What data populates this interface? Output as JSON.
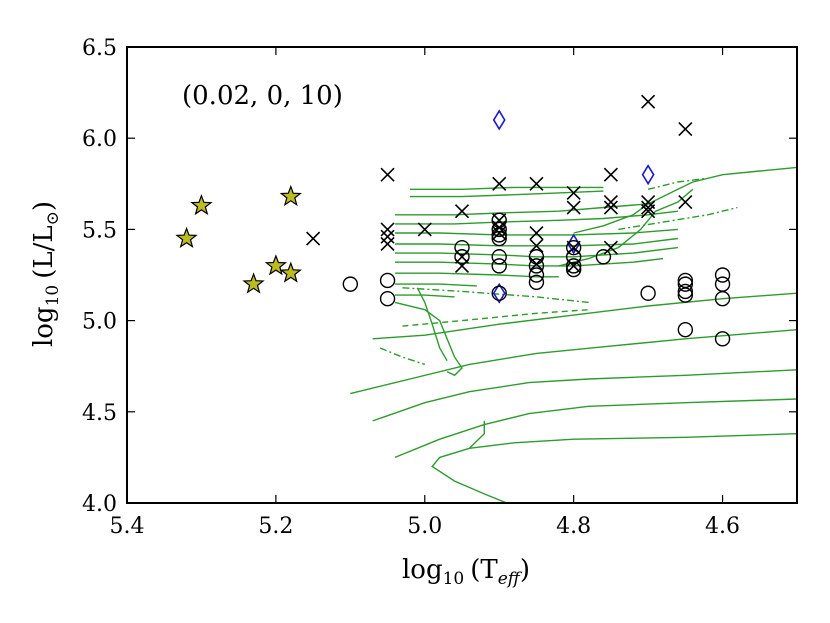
{
  "chart_data": {
    "type": "scatter",
    "title": "",
    "annotation": "(0.02, 0, 10)",
    "xlabel": {
      "prefix": "log",
      "sub": "10",
      "arg": "(T",
      "argsub": "eff",
      "close": ")"
    },
    "ylabel": {
      "prefix": "log",
      "sub": "10",
      "arg": "(L/L",
      "argsub": "⊙",
      "close": ")"
    },
    "xlim": [
      5.4,
      4.5
    ],
    "ylim": [
      4.0,
      6.5
    ],
    "xticks": [
      {
        "value": 5.4,
        "label": "5.4"
      },
      {
        "value": 5.2,
        "label": "5.2"
      },
      {
        "value": 5.0,
        "label": "5.0"
      },
      {
        "value": 4.8,
        "label": "4.8"
      },
      {
        "value": 4.6,
        "label": "4.6"
      }
    ],
    "yticks": [
      {
        "value": 4.0,
        "label": "4.0"
      },
      {
        "value": 4.5,
        "label": "4.5"
      },
      {
        "value": 5.0,
        "label": "5.0"
      },
      {
        "value": 5.5,
        "label": "5.5"
      },
      {
        "value": 6.0,
        "label": "6.0"
      },
      {
        "value": 6.5,
        "label": "6.5"
      }
    ],
    "grid": false,
    "colors": {
      "track": "#2e9b2e",
      "star": "#bcbc1e",
      "diamond": "#1a1acc",
      "marker": "#000000"
    },
    "series": [
      {
        "name": "stars",
        "marker": "star",
        "points": [
          [
            5.32,
            5.45
          ],
          [
            5.3,
            5.63
          ],
          [
            5.23,
            5.2
          ],
          [
            5.2,
            5.3
          ],
          [
            5.18,
            5.26
          ],
          [
            5.18,
            5.68
          ]
        ]
      },
      {
        "name": "diamonds",
        "marker": "diamond",
        "points": [
          [
            4.9,
            6.1
          ],
          [
            4.7,
            5.8
          ],
          [
            4.8,
            5.42
          ],
          [
            4.9,
            5.15
          ]
        ]
      },
      {
        "name": "crosses",
        "marker": "x",
        "points": [
          [
            5.15,
            5.45
          ],
          [
            5.05,
            5.8
          ],
          [
            5.05,
            5.5
          ],
          [
            5.05,
            5.46
          ],
          [
            5.05,
            5.42
          ],
          [
            5.0,
            5.5
          ],
          [
            4.95,
            5.6
          ],
          [
            4.95,
            5.35
          ],
          [
            4.95,
            5.3
          ],
          [
            4.9,
            5.75
          ],
          [
            4.9,
            5.55
          ],
          [
            4.9,
            5.51
          ],
          [
            4.9,
            5.48
          ],
          [
            4.85,
            5.75
          ],
          [
            4.85,
            5.48
          ],
          [
            4.85,
            5.41
          ],
          [
            4.85,
            5.31
          ],
          [
            4.8,
            5.7
          ],
          [
            4.8,
            5.62
          ],
          [
            4.8,
            5.4
          ],
          [
            4.8,
            5.3
          ],
          [
            4.75,
            5.8
          ],
          [
            4.75,
            5.65
          ],
          [
            4.75,
            5.62
          ],
          [
            4.75,
            5.4
          ],
          [
            4.7,
            6.2
          ],
          [
            4.7,
            5.65
          ],
          [
            4.7,
            5.62
          ],
          [
            4.7,
            5.6
          ],
          [
            4.65,
            6.05
          ],
          [
            4.65,
            5.65
          ]
        ]
      },
      {
        "name": "circles",
        "marker": "circle",
        "points": [
          [
            5.1,
            5.2
          ],
          [
            5.05,
            5.22
          ],
          [
            5.05,
            5.12
          ],
          [
            4.95,
            5.4
          ],
          [
            4.95,
            5.35
          ],
          [
            4.9,
            5.55
          ],
          [
            4.9,
            5.5
          ],
          [
            4.9,
            5.47
          ],
          [
            4.9,
            5.45
          ],
          [
            4.9,
            5.35
          ],
          [
            4.9,
            5.3
          ],
          [
            4.9,
            5.15
          ],
          [
            4.85,
            5.35
          ],
          [
            4.85,
            5.3
          ],
          [
            4.85,
            5.25
          ],
          [
            4.85,
            5.21
          ],
          [
            4.8,
            5.4
          ],
          [
            4.8,
            5.35
          ],
          [
            4.8,
            5.3
          ],
          [
            4.8,
            5.28
          ],
          [
            4.76,
            5.35
          ],
          [
            4.7,
            5.15
          ],
          [
            4.65,
            5.22
          ],
          [
            4.65,
            5.2
          ],
          [
            4.65,
            5.16
          ],
          [
            4.65,
            5.14
          ],
          [
            4.65,
            4.95
          ],
          [
            4.6,
            5.25
          ],
          [
            4.6,
            5.2
          ],
          [
            4.6,
            5.12
          ],
          [
            4.6,
            4.9
          ]
        ]
      }
    ],
    "tracks": [
      {
        "style": "solid",
        "points": [
          [
            5.04,
            5.48
          ],
          [
            4.98,
            5.48
          ],
          [
            4.9,
            5.47
          ],
          [
            4.85,
            5.47
          ],
          [
            4.8,
            5.47
          ],
          [
            4.72,
            5.48
          ],
          [
            4.66,
            5.5
          ]
        ]
      },
      {
        "style": "solid",
        "points": [
          [
            5.04,
            5.42
          ],
          [
            4.98,
            5.42
          ],
          [
            4.9,
            5.41
          ],
          [
            4.85,
            5.41
          ],
          [
            4.8,
            5.41
          ],
          [
            4.72,
            5.42
          ],
          [
            4.66,
            5.45
          ]
        ]
      },
      {
        "style": "solid",
        "points": [
          [
            5.04,
            5.37
          ],
          [
            4.98,
            5.37
          ],
          [
            4.9,
            5.36
          ],
          [
            4.85,
            5.35
          ],
          [
            4.8,
            5.35
          ],
          [
            4.72,
            5.37
          ],
          [
            4.66,
            5.4
          ]
        ]
      },
      {
        "style": "solid",
        "points": [
          [
            5.04,
            5.32
          ],
          [
            4.98,
            5.32
          ],
          [
            4.9,
            5.31
          ],
          [
            4.85,
            5.3
          ],
          [
            4.8,
            5.3
          ],
          [
            4.72,
            5.32
          ],
          [
            4.68,
            5.34
          ]
        ]
      },
      {
        "style": "solid",
        "points": [
          [
            5.04,
            5.26
          ],
          [
            4.98,
            5.26
          ],
          [
            4.9,
            5.25
          ],
          [
            4.85,
            5.24
          ],
          [
            4.82,
            5.24
          ]
        ]
      },
      {
        "style": "solid",
        "points": [
          [
            5.04,
            5.2
          ],
          [
            4.98,
            5.2
          ],
          [
            4.93,
            5.19
          ]
        ]
      },
      {
        "style": "solid",
        "points": [
          [
            5.04,
            5.14
          ],
          [
            5.0,
            5.14
          ],
          [
            4.96,
            5.13
          ]
        ]
      },
      {
        "style": "solid",
        "points": [
          [
            5.02,
            5.72
          ],
          [
            4.95,
            5.72
          ],
          [
            4.88,
            5.73
          ],
          [
            4.82,
            5.73
          ],
          [
            4.76,
            5.73
          ]
        ]
      },
      {
        "style": "solid",
        "points": [
          [
            5.02,
            5.68
          ],
          [
            4.95,
            5.68
          ],
          [
            4.88,
            5.69
          ],
          [
            4.82,
            5.7
          ],
          [
            4.76,
            5.71
          ]
        ]
      },
      {
        "style": "solid",
        "points": [
          [
            5.04,
            5.58
          ],
          [
            4.96,
            5.58
          ],
          [
            4.9,
            5.59
          ],
          [
            4.82,
            5.6
          ],
          [
            4.76,
            5.62
          ],
          [
            4.7,
            5.64
          ]
        ]
      },
      {
        "style": "solid",
        "points": [
          [
            5.04,
            5.53
          ],
          [
            4.96,
            5.53
          ],
          [
            4.9,
            5.54
          ],
          [
            4.82,
            5.55
          ],
          [
            4.76,
            5.56
          ],
          [
            4.7,
            5.58
          ],
          [
            4.66,
            5.6
          ]
        ]
      },
      {
        "style": "solid",
        "points": [
          [
            4.8,
            5.48
          ],
          [
            4.76,
            5.52
          ],
          [
            4.72,
            5.58
          ],
          [
            4.7,
            5.64
          ],
          [
            4.68,
            5.68
          ],
          [
            4.66,
            5.72
          ],
          [
            4.64,
            5.76
          ],
          [
            4.6,
            5.8
          ],
          [
            4.55,
            5.82
          ],
          [
            4.5,
            5.84
          ]
        ]
      },
      {
        "style": "solid",
        "points": [
          [
            4.82,
            5.3
          ],
          [
            4.78,
            5.34
          ],
          [
            4.74,
            5.4
          ],
          [
            4.71,
            5.5
          ],
          [
            4.69,
            5.6
          ],
          [
            4.66,
            5.65
          ],
          [
            4.64,
            5.72
          ]
        ]
      },
      {
        "style": "solid",
        "points": [
          [
            5.04,
            5.1
          ],
          [
            5.0,
            5.06
          ],
          [
            4.98,
            5.0
          ],
          [
            4.97,
            4.9
          ],
          [
            4.96,
            4.8
          ],
          [
            4.95,
            4.74
          ],
          [
            4.96,
            4.7
          ],
          [
            4.97,
            4.72
          ]
        ]
      },
      {
        "style": "solid",
        "points": [
          [
            5.01,
            5.18
          ],
          [
            5.0,
            5.1
          ],
          [
            4.99,
            4.98
          ],
          [
            4.98,
            4.85
          ],
          [
            4.97,
            4.78
          ]
        ]
      },
      {
        "style": "solid",
        "points": [
          [
            5.07,
            4.9
          ],
          [
            5.0,
            4.92
          ],
          [
            4.9,
            4.98
          ],
          [
            4.8,
            5.03
          ],
          [
            4.7,
            5.08
          ],
          [
            4.6,
            5.12
          ],
          [
            4.5,
            5.15
          ]
        ]
      },
      {
        "style": "solid",
        "points": [
          [
            5.1,
            4.6
          ],
          [
            5.02,
            4.68
          ],
          [
            4.94,
            4.76
          ],
          [
            4.85,
            4.82
          ],
          [
            4.75,
            4.86
          ],
          [
            4.65,
            4.9
          ],
          [
            4.5,
            4.95
          ]
        ]
      },
      {
        "style": "solid",
        "points": [
          [
            5.07,
            4.45
          ],
          [
            5.0,
            4.55
          ],
          [
            4.94,
            4.61
          ],
          [
            4.86,
            4.66
          ],
          [
            4.78,
            4.68
          ],
          [
            4.65,
            4.7
          ],
          [
            4.5,
            4.73
          ]
        ]
      },
      {
        "style": "solid",
        "points": [
          [
            5.04,
            4.25
          ],
          [
            4.98,
            4.35
          ],
          [
            4.92,
            4.43
          ],
          [
            4.86,
            4.49
          ],
          [
            4.78,
            4.53
          ],
          [
            4.65,
            4.55
          ],
          [
            4.5,
            4.57
          ]
        ]
      },
      {
        "style": "solid",
        "points": [
          [
            4.89,
            4.0
          ],
          [
            4.92,
            4.05
          ],
          [
            4.96,
            4.12
          ],
          [
            4.99,
            4.2
          ],
          [
            4.98,
            4.25
          ],
          [
            4.94,
            4.3
          ],
          [
            4.88,
            4.33
          ],
          [
            4.8,
            4.35
          ],
          [
            4.65,
            4.36
          ],
          [
            4.5,
            4.38
          ]
        ]
      },
      {
        "style": "solid",
        "points": [
          [
            4.94,
            4.3
          ],
          [
            4.92,
            4.38
          ],
          [
            4.92,
            4.45
          ]
        ]
      },
      {
        "style": "dashdot",
        "points": [
          [
            5.03,
            5.18
          ],
          [
            4.95,
            5.16
          ],
          [
            4.85,
            5.13
          ],
          [
            4.78,
            5.1
          ]
        ]
      },
      {
        "style": "dashed",
        "points": [
          [
            5.03,
            4.97
          ],
          [
            4.95,
            5.0
          ],
          [
            4.85,
            5.04
          ],
          [
            4.78,
            5.06
          ]
        ]
      },
      {
        "style": "dashdot",
        "points": [
          [
            5.06,
            4.85
          ],
          [
            5.03,
            4.8
          ],
          [
            5.0,
            4.76
          ]
        ]
      },
      {
        "style": "dashdot",
        "points": [
          [
            4.74,
            5.5
          ],
          [
            4.68,
            5.54
          ],
          [
            4.62,
            5.58
          ],
          [
            4.58,
            5.62
          ]
        ]
      },
      {
        "style": "dashdot",
        "points": [
          [
            4.7,
            5.72
          ],
          [
            4.66,
            5.76
          ],
          [
            4.62,
            5.78
          ]
        ]
      }
    ]
  }
}
